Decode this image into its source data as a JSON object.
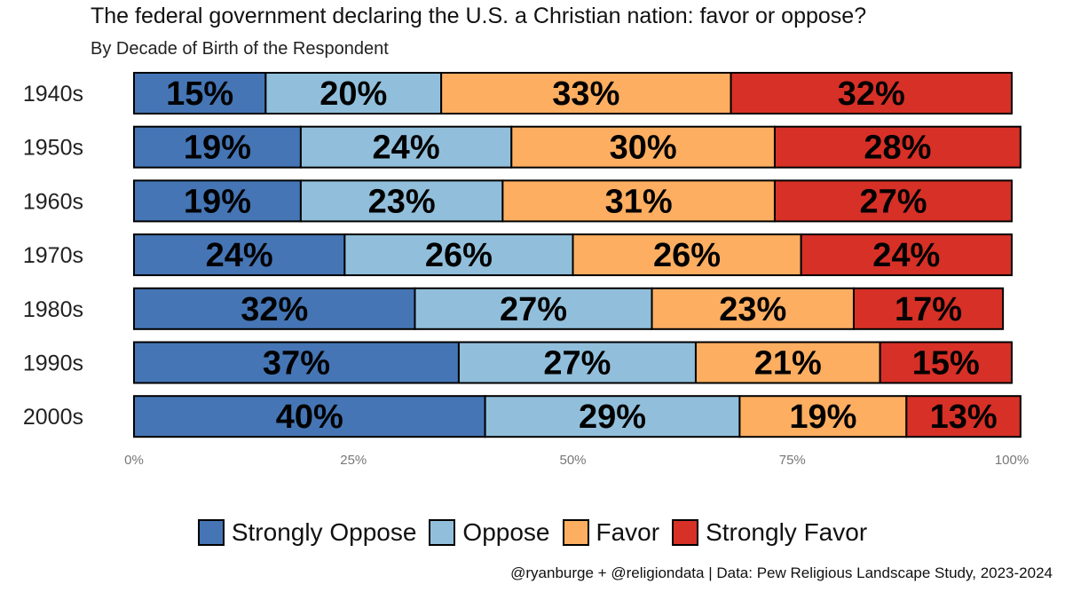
{
  "chart_data": {
    "type": "bar",
    "orientation": "horizontal",
    "stacked": true,
    "title": "The federal government declaring the U.S. a Christian nation: favor or oppose?",
    "subtitle": "By Decade of Birth of the Respondent",
    "categories": [
      "1940s",
      "1950s",
      "1960s",
      "1970s",
      "1980s",
      "1990s",
      "2000s"
    ],
    "series": [
      {
        "name": "Strongly Oppose",
        "color": "#4575b4",
        "values": [
          15,
          19,
          19,
          24,
          32,
          37,
          40
        ]
      },
      {
        "name": "Oppose",
        "color": "#91bfdb",
        "values": [
          20,
          24,
          23,
          26,
          27,
          27,
          29
        ]
      },
      {
        "name": "Favor",
        "color": "#fdae61",
        "values": [
          33,
          30,
          31,
          26,
          23,
          21,
          19
        ]
      },
      {
        "name": "Strongly Favor",
        "color": "#d73027",
        "values": [
          32,
          28,
          27,
          24,
          17,
          15,
          13
        ]
      }
    ],
    "xlim": [
      0,
      100
    ],
    "x_ticks": [
      "0%",
      "25%",
      "50%",
      "75%",
      "100%"
    ],
    "value_suffix": "%",
    "legend_position": "bottom",
    "caption": "@ryanburge + @religiondata | Data: Pew Religious Landscape Study, 2023-2024"
  }
}
